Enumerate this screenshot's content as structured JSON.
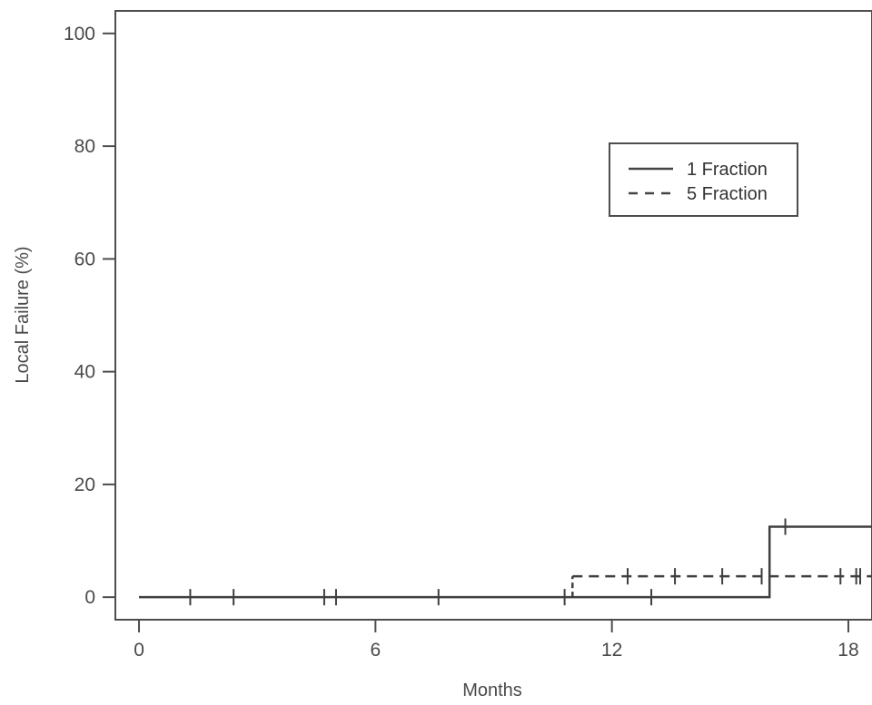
{
  "chart_data": {
    "type": "line",
    "xlabel": "Months",
    "ylabel": "Local Failure (%)",
    "xlim": [
      -0.6,
      18.6
    ],
    "ylim": [
      -4,
      104
    ],
    "xticks": [
      0,
      6,
      12,
      18
    ],
    "yticks": [
      0,
      20,
      40,
      60,
      80,
      100
    ],
    "grid": false,
    "legend_position": "top-right",
    "step": true,
    "series": [
      {
        "name": "1 Fraction",
        "style": "solid",
        "x": [
          0,
          16.0,
          18.6
        ],
        "y": [
          0,
          12.5,
          12.5
        ],
        "censored": [
          {
            "x": 1.3,
            "y": 0
          },
          {
            "x": 2.4,
            "y": 0
          },
          {
            "x": 4.7,
            "y": 0
          },
          {
            "x": 5.0,
            "y": 0
          },
          {
            "x": 7.6,
            "y": 0
          },
          {
            "x": 10.8,
            "y": 0
          },
          {
            "x": 13.0,
            "y": 0
          },
          {
            "x": 16.4,
            "y": 12.5
          }
        ]
      },
      {
        "name": "5 Fraction",
        "style": "dashed",
        "x": [
          11.0,
          18.6
        ],
        "y": [
          3.7,
          3.7
        ],
        "censored": [
          {
            "x": 12.4,
            "y": 3.7
          },
          {
            "x": 13.6,
            "y": 3.7
          },
          {
            "x": 14.8,
            "y": 3.7
          },
          {
            "x": 15.8,
            "y": 3.7
          },
          {
            "x": 17.8,
            "y": 3.7
          },
          {
            "x": 18.2,
            "y": 3.7
          },
          {
            "x": 18.3,
            "y": 3.7
          }
        ]
      }
    ]
  }
}
